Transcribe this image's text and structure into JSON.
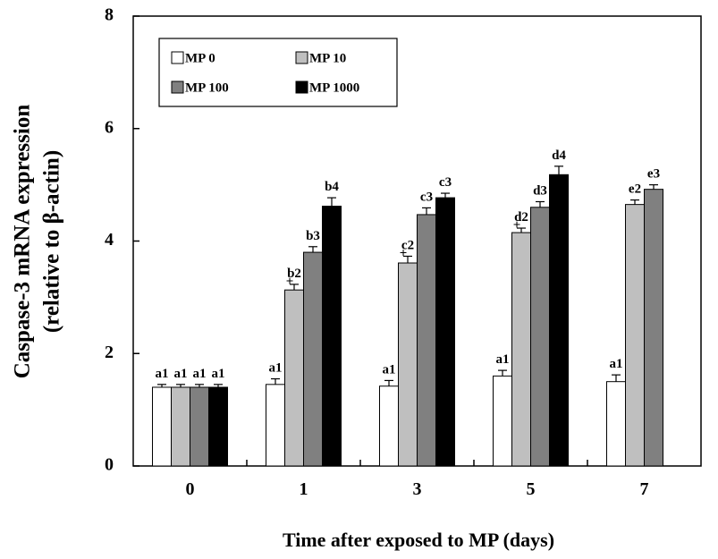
{
  "chart_data": {
    "type": "bar",
    "xlabel": "Time after exposed to MP (days)",
    "ylabel_lines": [
      "Caspase-3 mRNA expression",
      "(relative to β-actin)"
    ],
    "ylim": [
      0,
      8
    ],
    "yticks": [
      "0",
      "2",
      "4",
      "6",
      "8"
    ],
    "categories": [
      "0",
      "1",
      "3",
      "5",
      "7"
    ],
    "legend": {
      "placement": "top-left",
      "columns": 2
    },
    "series": [
      {
        "name": "MP 0",
        "color": "#ffffff",
        "values": [
          1.4,
          1.45,
          1.42,
          1.6,
          1.5
        ],
        "errors": [
          0.05,
          0.1,
          0.1,
          0.1,
          0.12
        ],
        "labels": [
          "a1",
          "a1",
          "a1",
          "a1",
          "a1"
        ],
        "markers": [
          "",
          "",
          "",
          "",
          ""
        ]
      },
      {
        "name": "MP 10",
        "color": "#bfbfbf",
        "values": [
          1.4,
          3.13,
          3.61,
          4.15,
          4.65
        ],
        "errors": [
          0.05,
          0.1,
          0.12,
          0.08,
          0.08
        ],
        "labels": [
          "a1",
          "b2",
          "c2",
          "d2",
          "e2"
        ],
        "markers": [
          "",
          "+",
          "+",
          "+",
          ""
        ]
      },
      {
        "name": "MP 100",
        "color": "#808080",
        "values": [
          1.4,
          3.8,
          4.47,
          4.6,
          4.92
        ],
        "errors": [
          0.05,
          0.1,
          0.12,
          0.1,
          0.08
        ],
        "labels": [
          "a1",
          "b3",
          "c3",
          "d3",
          "e3"
        ],
        "markers": [
          "",
          "",
          "",
          "",
          ""
        ]
      },
      {
        "name": "MP 1000",
        "color": "#000000",
        "values": [
          1.4,
          4.62,
          4.77,
          5.18,
          null
        ],
        "errors": [
          0.05,
          0.15,
          0.08,
          0.15,
          null
        ],
        "labels": [
          "a1",
          "b4",
          "c3",
          "d4",
          ""
        ],
        "markers": [
          "",
          "",
          "",
          "",
          ""
        ]
      }
    ]
  }
}
